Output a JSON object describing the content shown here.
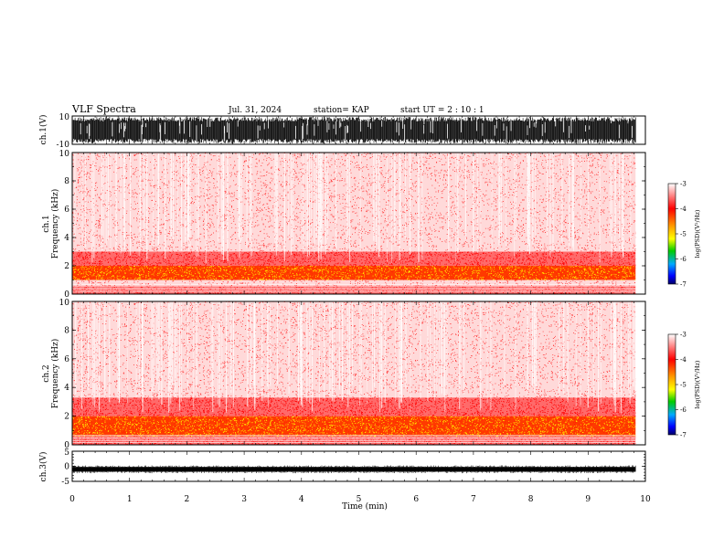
{
  "header": {
    "title": "VLF Spectra",
    "date": "Jul. 31, 2024",
    "station": "station= KAP",
    "start": "start UT =  2 : 10 : 1"
  },
  "colors": {
    "axis": "#000000",
    "spectrogram_low": "#ff4444",
    "spectrogram_mid": "#ff0000",
    "spectrogram_high": "#ffff00",
    "colorbar_stops": [
      "#ffffff",
      "#ff0000",
      "#ff8800",
      "#ffff00",
      "#00cc00",
      "#00aaff",
      "#0000ff",
      "#000066"
    ]
  },
  "chart_data": [
    {
      "type": "line",
      "ylabel": "ch.1(V)",
      "ylim": [
        -10,
        10
      ],
      "y_ticks": [
        "10",
        "-10"
      ],
      "xlim": [
        0,
        10
      ],
      "x_data_end": 9.83,
      "description_values": {
        "min": -10,
        "max": 10
      }
    },
    {
      "type": "heatmap",
      "ylabel": "ch.1 Frequency (kHz)",
      "ylim": [
        0,
        10
      ],
      "y_ticks": [
        "0",
        "2",
        "4",
        "6",
        "8",
        "10"
      ],
      "xlim": [
        0,
        10
      ],
      "x_data_end": 9.83,
      "bands": [
        {
          "from": 0.0,
          "to": 0.6,
          "level": "mid"
        },
        {
          "from": 0.6,
          "to": 1.0,
          "level": "low"
        },
        {
          "from": 1.0,
          "to": 2.0,
          "level": "high"
        },
        {
          "from": 2.0,
          "to": 3.0,
          "level": "mid"
        },
        {
          "from": 3.0,
          "to": 10.0,
          "level": "low"
        }
      ],
      "colorbar": {
        "label": "log(PSD)(V²/Hz)",
        "ticks": [
          "-3",
          "-4",
          "-5",
          "-6",
          "-7"
        ],
        "range": [
          -7,
          -3
        ]
      }
    },
    {
      "type": "heatmap",
      "ylabel": "ch.2 Frequency (kHz)",
      "ylim": [
        0,
        10
      ],
      "y_ticks": [
        "0",
        "2",
        "4",
        "6",
        "8",
        "10"
      ],
      "xlim": [
        0,
        10
      ],
      "x_data_end": 9.83,
      "bands": [
        {
          "from": 0.0,
          "to": 0.6,
          "level": "mid"
        },
        {
          "from": 0.6,
          "to": 2.0,
          "level": "high"
        },
        {
          "from": 2.0,
          "to": 3.3,
          "level": "mid"
        },
        {
          "from": 3.3,
          "to": 10.0,
          "level": "low"
        }
      ],
      "colorbar": {
        "label": "log(PSD)(V²/Hz)",
        "ticks": [
          "-3",
          "-4",
          "-5",
          "-6",
          "-7"
        ],
        "range": [
          -7,
          -3
        ]
      }
    },
    {
      "type": "line",
      "ylabel": "ch.3(V)",
      "ylim": [
        -5,
        5
      ],
      "y_ticks": [
        "5",
        "0",
        "-5"
      ],
      "xlim": [
        0,
        10
      ],
      "x_data_end": 9.83,
      "xlabel": "Time (min)",
      "x_ticks": [
        "0",
        "1",
        "2",
        "3",
        "4",
        "5",
        "6",
        "7",
        "8",
        "9",
        "10"
      ],
      "mean_value": -1.0
    }
  ]
}
